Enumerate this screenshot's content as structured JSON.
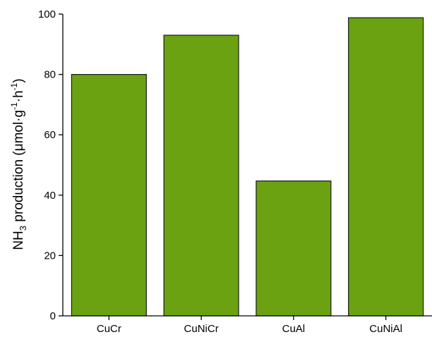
{
  "chart_data": {
    "type": "bar",
    "title": "",
    "xlabel": "",
    "ylabel": "NH3 production (μmol·g-1·h-1)",
    "ylabel_parts": {
      "pre": "NH",
      "sub": "3",
      "mid": " production (μmol·g",
      "sup1": "-1",
      "dot": "·h",
      "sup2": "-1",
      "post": ")"
    },
    "categories": [
      "CuCr",
      "CuNiCr",
      "CuAl",
      "CuNiAl"
    ],
    "values": [
      80,
      93,
      44.7,
      98.8
    ],
    "ylim": [
      0,
      100
    ],
    "yticks": [
      0,
      20,
      40,
      60,
      80,
      100
    ],
    "grid": false,
    "legend": "none",
    "bar_color": "#6aa212",
    "bar_edge_color": "#1a1a1a"
  }
}
